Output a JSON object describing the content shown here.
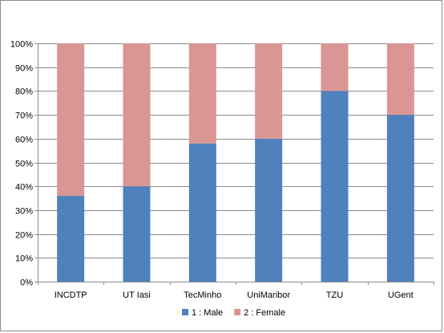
{
  "chart_data": {
    "type": "bar",
    "stacked": true,
    "percent_stacked": true,
    "categories": [
      "INCDTP",
      "UT Iasi",
      "TecMinho",
      "UniMaribor",
      "TZU",
      "UGent"
    ],
    "series": [
      {
        "name": "1 : Male",
        "values": [
          36,
          40,
          58,
          60,
          80,
          70
        ],
        "color": "#4f81bd"
      },
      {
        "name": "2 : Female",
        "values": [
          64,
          60,
          42,
          40,
          20,
          30
        ],
        "color": "#d99694"
      }
    ],
    "y_ticks": [
      "0%",
      "10%",
      "20%",
      "30%",
      "40%",
      "50%",
      "60%",
      "70%",
      "80%",
      "90%",
      "100%"
    ],
    "ylim": [
      0,
      100
    ],
    "grid": true,
    "legend_position": "bottom"
  }
}
